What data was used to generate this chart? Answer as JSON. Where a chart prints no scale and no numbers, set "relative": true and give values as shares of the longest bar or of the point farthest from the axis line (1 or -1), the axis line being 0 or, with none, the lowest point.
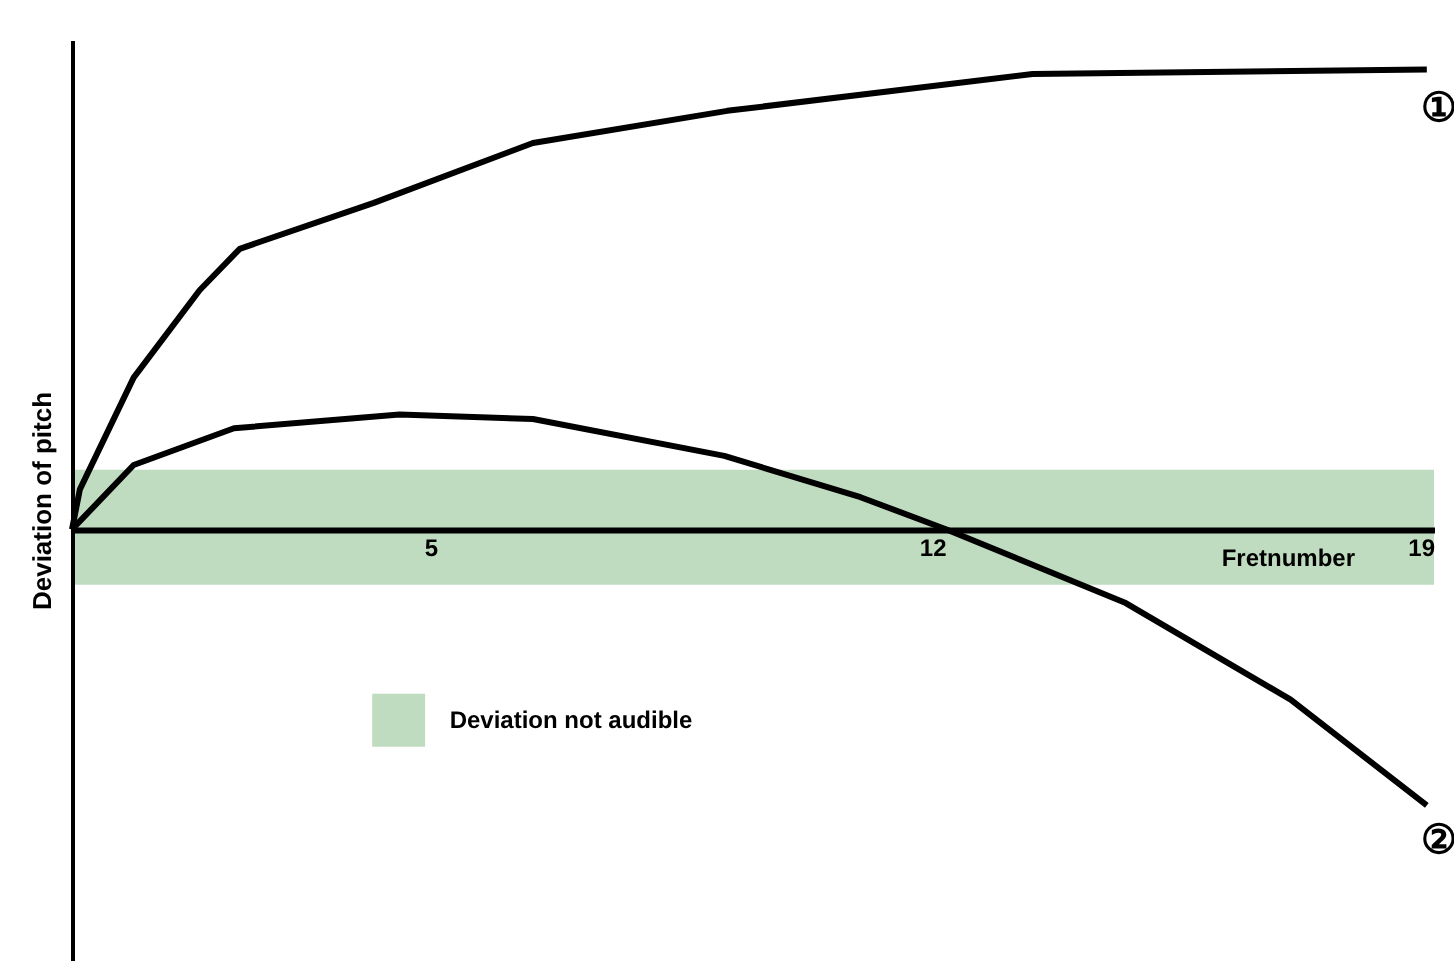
{
  "chart_data": {
    "type": "line",
    "relative": true,
    "xlabel": "Fretnumber",
    "ylabel": "Deviation of pitch",
    "xlim": [
      0,
      19
    ],
    "xticks": [
      5,
      12,
      19
    ],
    "tick_labels": "x",
    "grid": false,
    "legend": "bottom left",
    "marker": "none",
    "line_style": "solid",
    "series": [
      {
        "name": "①",
        "color": "#000000",
        "x": [
          0,
          0.11,
          0.86,
          1.78,
          2.34,
          4.21,
          6.43,
          9.14,
          13.4,
          18.9
        ],
        "values": [
          0,
          0.087,
          0.33,
          0.52,
          0.61,
          0.71,
          0.84,
          0.91,
          0.99,
          1.0
        ]
      },
      {
        "name": "②",
        "color": "#000000",
        "x": [
          0,
          0.86,
          2.26,
          4.57,
          6.43,
          9.1,
          11.0,
          12.2,
          14.7,
          17.0,
          18.9
        ],
        "values": [
          0,
          0.14,
          0.22,
          0.25,
          0.24,
          0.16,
          0.07,
          0,
          -0.16,
          -0.37,
          -0.6
        ]
      }
    ],
    "bands": [
      {
        "axis": "y",
        "from": -0.12,
        "to": 0.13,
        "label": "Deviation not audible",
        "color": "#c0dcc0"
      }
    ]
  }
}
